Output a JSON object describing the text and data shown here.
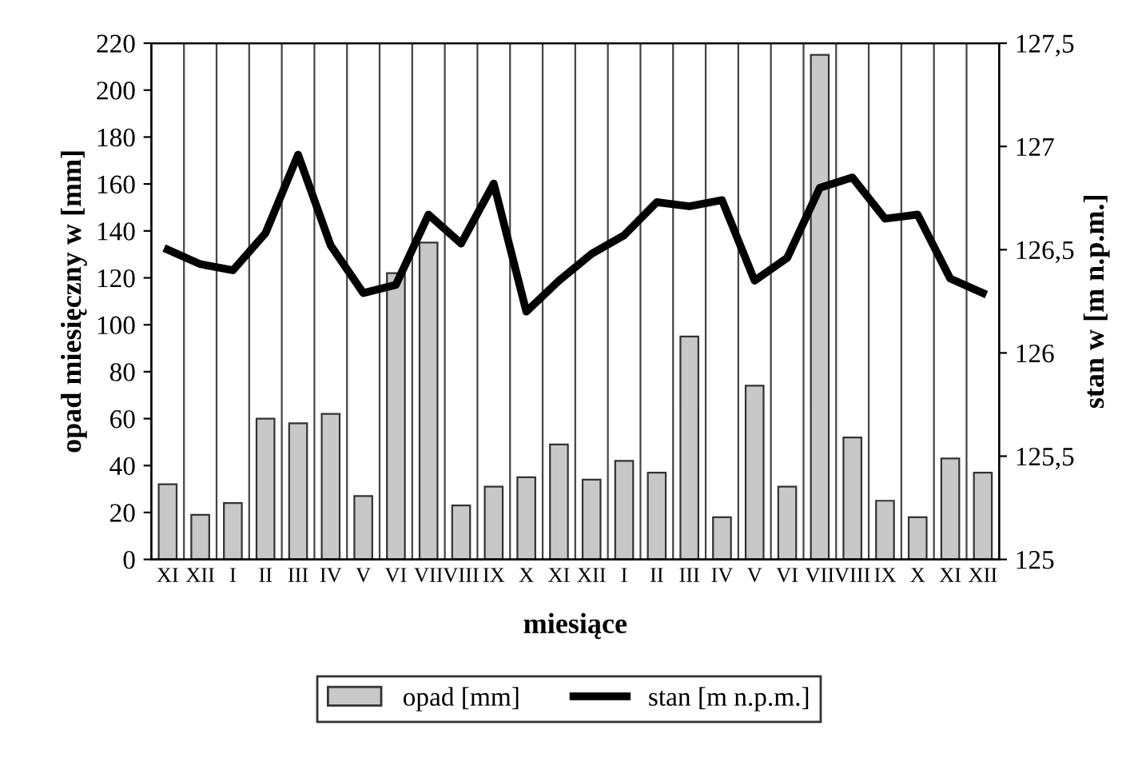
{
  "chart_data": {
    "type": "bar",
    "xlabel": "miesiące",
    "ylabel": "opad miesięczny w [mm]",
    "y2label": "stan w [m n.p.m.]",
    "categories": [
      "XI",
      "XII",
      "I",
      "II",
      "III",
      "IV",
      "V",
      "VI",
      "VII",
      "VIII",
      "IX",
      "X",
      "XI",
      "XII",
      "I",
      "II",
      "III",
      "IV",
      "V",
      "VI",
      "VII",
      "VIII",
      "IX",
      "X",
      "XI",
      "XII"
    ],
    "series": [
      {
        "name": "opad [mm]",
        "color": "#c8c8c8",
        "values": [
          32,
          19,
          24,
          60,
          58,
          62,
          27,
          122,
          135,
          23,
          31,
          35,
          49,
          34,
          42,
          37,
          95,
          18,
          74,
          31,
          215,
          52,
          25,
          18,
          43,
          37
        ]
      },
      {
        "name": "stan [m n.p.m.]",
        "type": "line",
        "axis": "y2",
        "color": "#000000",
        "values": [
          126.5,
          126.43,
          126.4,
          126.58,
          126.96,
          126.52,
          126.29,
          126.33,
          126.67,
          126.53,
          126.82,
          126.2,
          126.35,
          126.48,
          126.57,
          126.73,
          126.71,
          126.74,
          126.35,
          126.46,
          126.8,
          126.85,
          126.65,
          126.67,
          126.36,
          126.29
        ]
      }
    ],
    "ylim": [
      0,
      220
    ],
    "yticks": [
      0,
      20,
      40,
      60,
      80,
      100,
      120,
      140,
      160,
      180,
      200,
      220
    ],
    "y2lim": [
      125,
      127.5
    ],
    "y2ticks": [
      125,
      {
        "value": 125.5,
        "label": "125,5"
      },
      126,
      {
        "value": 126.5,
        "label": "126,5"
      },
      127,
      {
        "value": 127.5,
        "label": "127,5"
      }
    ],
    "grid": "x",
    "legend": "bottom",
    "marker": "none",
    "line_style": "solid"
  }
}
